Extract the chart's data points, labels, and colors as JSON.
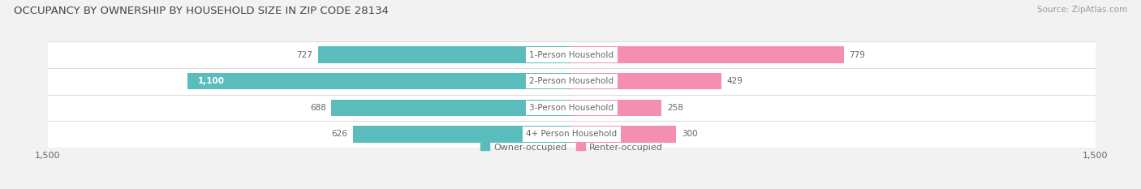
{
  "title": "OCCUPANCY BY OWNERSHIP BY HOUSEHOLD SIZE IN ZIP CODE 28134",
  "source": "Source: ZipAtlas.com",
  "categories": [
    "1-Person Household",
    "2-Person Household",
    "3-Person Household",
    "4+ Person Household"
  ],
  "owner_values": [
    727,
    1100,
    688,
    626
  ],
  "renter_values": [
    779,
    429,
    258,
    300
  ],
  "owner_color": "#5bbcbd",
  "renter_color": "#f48fb1",
  "label_color": "#666666",
  "background_color": "#f2f2f2",
  "bar_background_color": "#ffffff",
  "row_divider_color": "#dddddd",
  "xlim": 1500,
  "bar_height": 0.62,
  "title_fontsize": 9.5,
  "source_fontsize": 7.5,
  "tick_fontsize": 8,
  "value_fontsize": 7.5,
  "category_fontsize": 7.5,
  "legend_fontsize": 8,
  "owner_label_inside_threshold": 900
}
